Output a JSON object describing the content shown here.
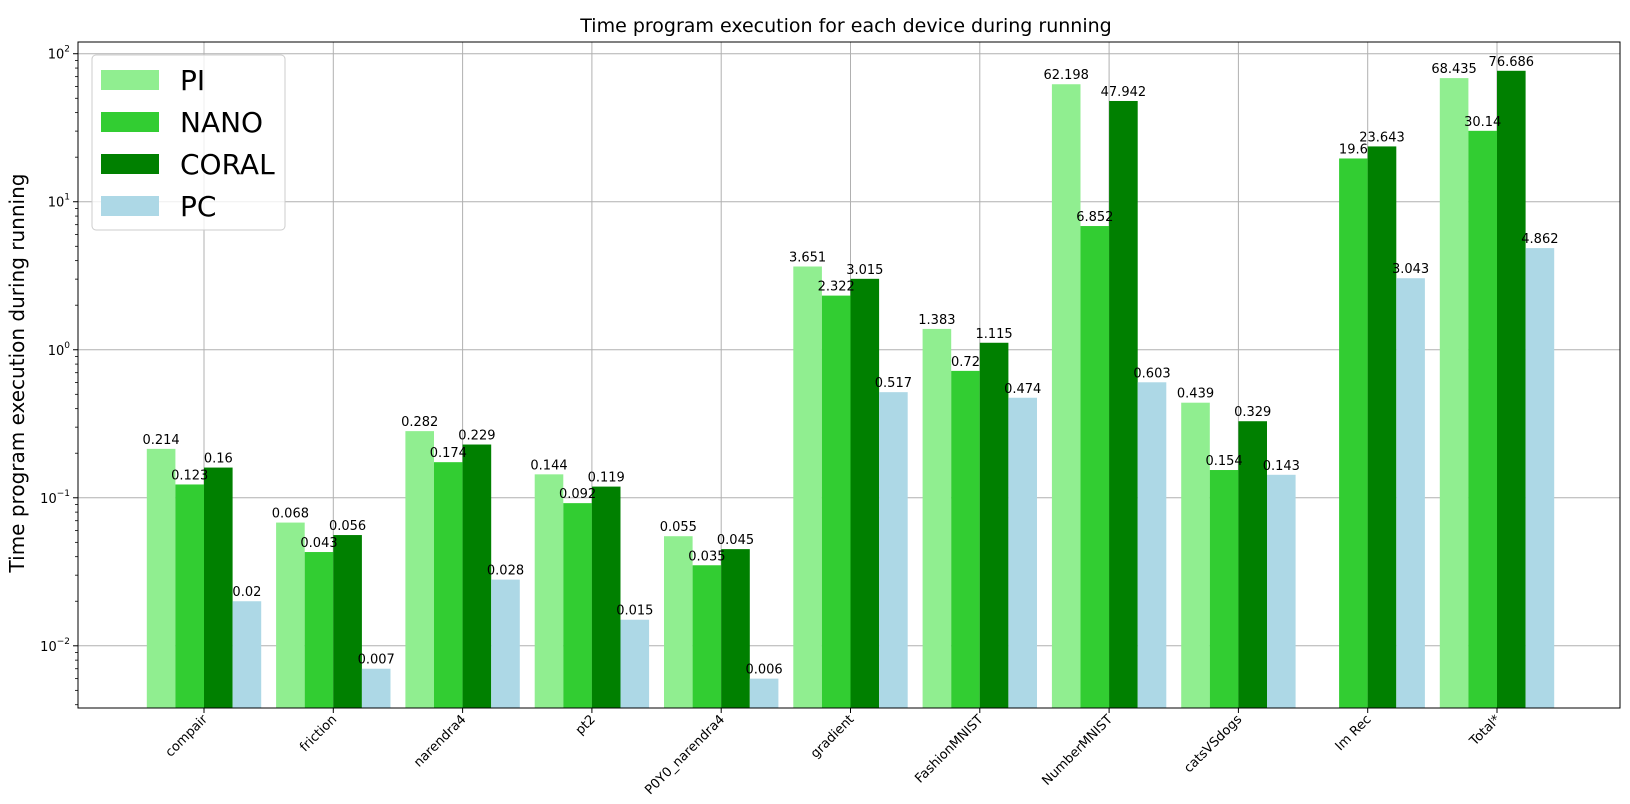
{
  "chart_data": {
    "type": "bar",
    "title": "Time program execution for each device during running",
    "xlabel": "",
    "ylabel": "Time program execution during running",
    "yscale": "log",
    "ylim": [
      0.0038,
      120
    ],
    "grid": true,
    "legend_position": "top-left",
    "categories": [
      "compair",
      "friction",
      "narendra4",
      "pt2",
      "P0Y0_narendra4",
      "gradient",
      "FashionMNIST",
      "NumberMNIST",
      "catsVSdogs",
      "Im Rec",
      "Total*"
    ],
    "series": [
      {
        "name": "PI",
        "color": "#90ee90",
        "values": [
          0.214,
          0.068,
          0.282,
          0.144,
          0.055,
          3.651,
          1.383,
          62.198,
          0.439,
          null,
          68.435
        ]
      },
      {
        "name": "NANO",
        "color": "#32cd32",
        "values": [
          0.123,
          0.043,
          0.174,
          0.092,
          0.035,
          2.322,
          0.72,
          6.852,
          0.154,
          19.6,
          30.14
        ]
      },
      {
        "name": "CORAL",
        "color": "#008000",
        "values": [
          0.16,
          0.056,
          0.229,
          0.119,
          0.045,
          3.015,
          1.115,
          47.942,
          0.329,
          23.643,
          76.686
        ]
      },
      {
        "name": "PC",
        "color": "#add8e6",
        "values": [
          0.02,
          0.007,
          0.028,
          0.015,
          0.006,
          0.517,
          0.474,
          0.603,
          0.143,
          3.043,
          4.862
        ]
      }
    ],
    "y_ticks": [
      {
        "value": 0.01,
        "base": "10",
        "exp": "−2"
      },
      {
        "value": 0.1,
        "base": "10",
        "exp": "−1"
      },
      {
        "value": 1,
        "base": "10",
        "exp": "0"
      },
      {
        "value": 10,
        "base": "10",
        "exp": "1"
      },
      {
        "value": 100,
        "base": "10",
        "exp": "2"
      }
    ]
  }
}
